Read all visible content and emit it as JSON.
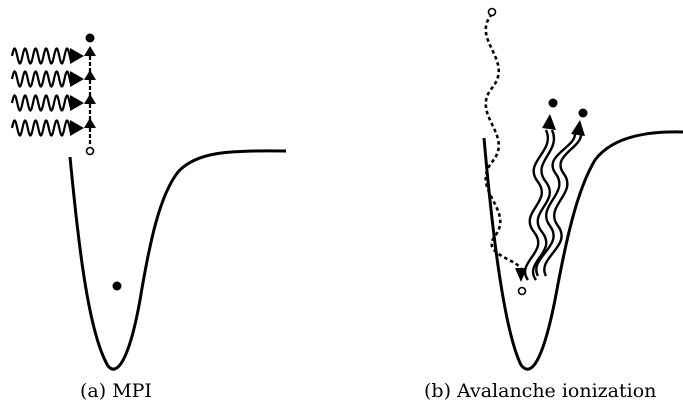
{
  "panels": [
    {
      "caption": "(a) MPI"
    },
    {
      "caption": "(b) Avalanche ionization"
    }
  ],
  "colors": {
    "ink": "#000000",
    "background": "#ffffff"
  }
}
